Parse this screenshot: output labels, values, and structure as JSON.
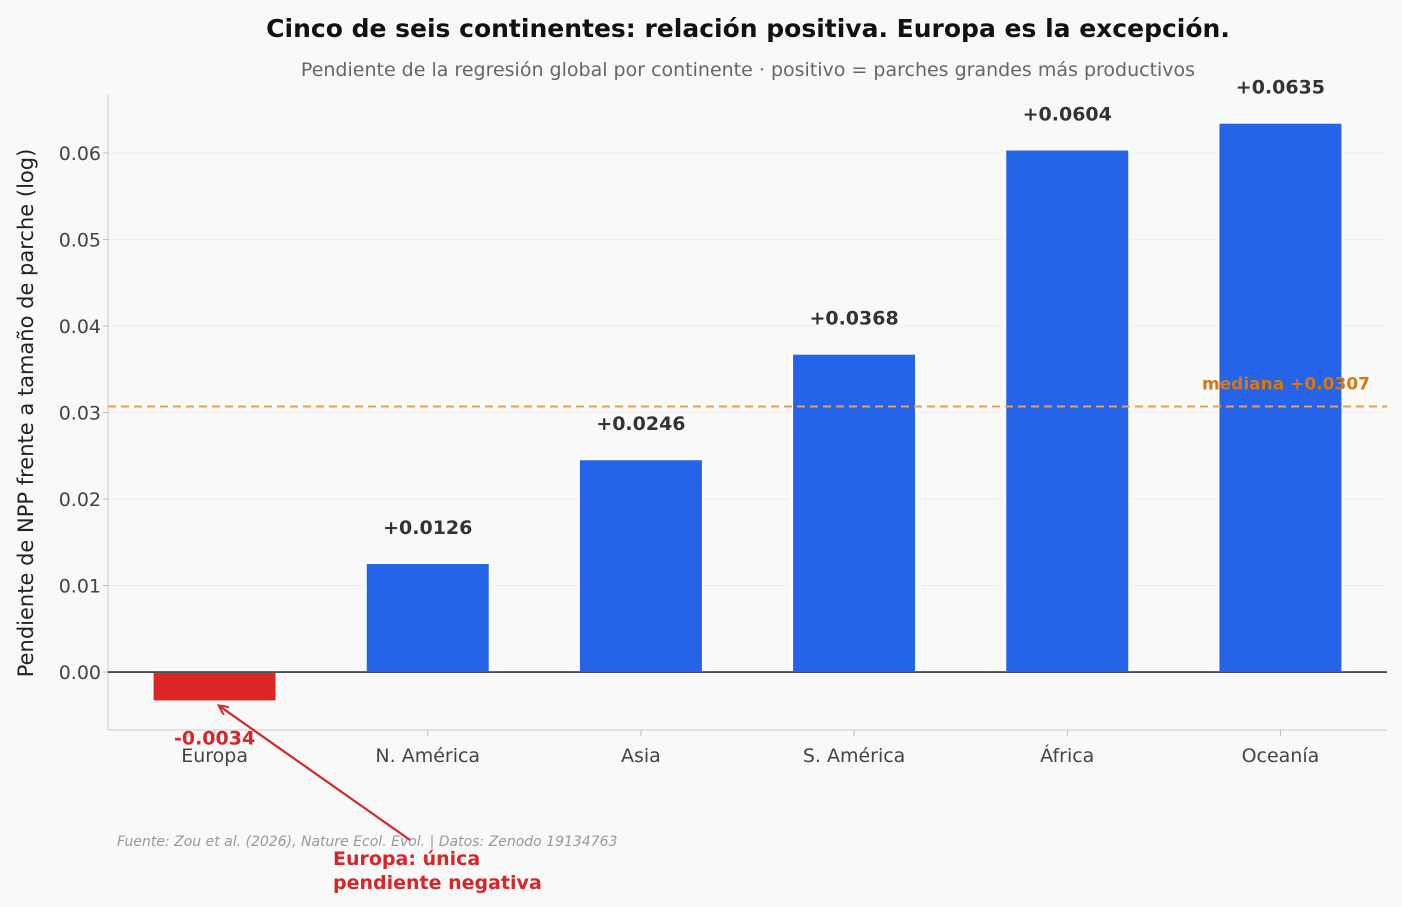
{
  "chart_data": {
    "type": "bar",
    "title": "Cinco de seis continentes: relación positiva. Europa es la excepción.",
    "subtitle": "Pendiente de la regresión global por continente · positivo = parches grandes más productivos",
    "ylabel": "Pendiente de NPP frente a tamaño de parche (log)",
    "xlabel": "",
    "categories": [
      "Europa",
      "N. América",
      "Asia",
      "S. América",
      "África",
      "Oceanía"
    ],
    "values": [
      -0.0034,
      0.0126,
      0.0246,
      0.0368,
      0.0604,
      0.0635
    ],
    "value_labels": [
      "-0.0034",
      "+0.0126",
      "+0.0246",
      "+0.0368",
      "+0.0604",
      "+0.0635"
    ],
    "ylim": [
      -0.0067,
      0.0667
    ],
    "yticks": [
      0.0,
      0.01,
      0.02,
      0.03,
      0.04,
      0.05,
      0.06
    ],
    "ytick_labels": [
      "0.00",
      "0.01",
      "0.02",
      "0.03",
      "0.04",
      "0.05",
      "0.06"
    ],
    "grid": true,
    "median": {
      "value": 0.0307,
      "label": "mediana +0.0307",
      "color": "#e8a04a",
      "label_color": "#d9770f"
    },
    "colors": {
      "positive": "#2563e8",
      "negative": "#dc2626"
    },
    "annotation": {
      "text_line1": "Europa: única",
      "text_line2": "pendiente negativa",
      "target_category": "Europa"
    },
    "source": "Fuente: Zou et al. (2026), Nature Ecol. Evol. | Datos: Zenodo 19134763"
  }
}
